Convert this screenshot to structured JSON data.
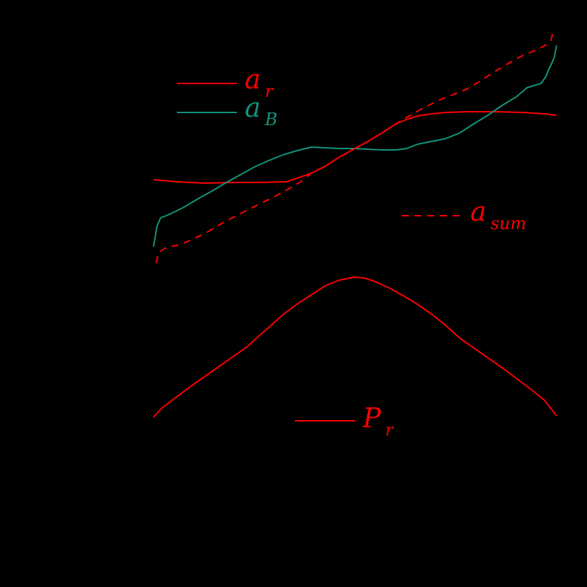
{
  "chart_data": {
    "type": "line",
    "title": "",
    "xlabel": "",
    "ylabel": "",
    "grid": false,
    "background": "#000000",
    "pixel_space_note": "Axes/ticks not visible (black on black); values are in screen pixel coordinates (x: 217-787, y: 0 top - 830 bottom).",
    "series": [
      {
        "name": "a_r",
        "label_main": "a",
        "label_sub": "r",
        "color": "#ff0000",
        "style": "solid",
        "points": [
          [
            217,
            254
          ],
          [
            250,
            257
          ],
          [
            290,
            259
          ],
          [
            330,
            258
          ],
          [
            370,
            258
          ],
          [
            405,
            257
          ],
          [
            420,
            252
          ],
          [
            440,
            245
          ],
          [
            460,
            235
          ],
          [
            480,
            222
          ],
          [
            500,
            211
          ],
          [
            520,
            200
          ],
          [
            540,
            188
          ],
          [
            560,
            175
          ],
          [
            575,
            169
          ],
          [
            590,
            164
          ],
          [
            610,
            161
          ],
          [
            630,
            159
          ],
          [
            660,
            158
          ],
          [
            700,
            158
          ],
          [
            740,
            159
          ],
          [
            770,
            161
          ],
          [
            787,
            163
          ]
        ]
      },
      {
        "name": "a_B",
        "label_main": "a",
        "label_sub": "B",
        "color": "#12947c",
        "style": "solid",
        "points": [
          [
            217,
            349
          ],
          [
            222,
            320
          ],
          [
            227,
            308
          ],
          [
            235,
            305
          ],
          [
            250,
            298
          ],
          [
            260,
            293
          ],
          [
            280,
            281
          ],
          [
            300,
            270
          ],
          [
            320,
            258
          ],
          [
            340,
            247
          ],
          [
            360,
            236
          ],
          [
            380,
            227
          ],
          [
            400,
            219
          ],
          [
            420,
            213
          ],
          [
            440,
            208
          ],
          [
            460,
            209
          ],
          [
            480,
            210
          ],
          [
            500,
            210
          ],
          [
            520,
            211
          ],
          [
            540,
            212
          ],
          [
            560,
            212
          ],
          [
            575,
            210
          ],
          [
            590,
            204
          ],
          [
            610,
            200
          ],
          [
            630,
            196
          ],
          [
            650,
            188
          ],
          [
            670,
            175
          ],
          [
            690,
            163
          ],
          [
            710,
            149
          ],
          [
            730,
            137
          ],
          [
            745,
            124
          ],
          [
            755,
            121
          ],
          [
            765,
            118
          ],
          [
            772,
            108
          ],
          [
            775,
            100
          ],
          [
            780,
            90
          ],
          [
            784,
            80
          ],
          [
            787,
            64
          ]
        ]
      },
      {
        "name": "a_sum",
        "label_main": "a",
        "label_sub": "sum",
        "color": "#ff0000",
        "style": "dashed",
        "points": [
          [
            221,
            372
          ],
          [
            224,
            357
          ],
          [
            235,
            350
          ],
          [
            255,
            346
          ],
          [
            275,
            337
          ],
          [
            290,
            330
          ],
          [
            310,
            318
          ],
          [
            330,
            307
          ],
          [
            350,
            297
          ],
          [
            370,
            287
          ],
          [
            390,
            277
          ],
          [
            410,
            266
          ],
          [
            425,
            257
          ],
          [
            440,
            245
          ],
          [
            460,
            235
          ],
          [
            480,
            222
          ],
          [
            500,
            211
          ],
          [
            520,
            200
          ],
          [
            540,
            188
          ],
          [
            560,
            175
          ],
          [
            580,
            163
          ],
          [
            600,
            152
          ],
          [
            620,
            142
          ],
          [
            640,
            134
          ],
          [
            660,
            126
          ],
          [
            680,
            114
          ],
          [
            700,
            101
          ],
          [
            720,
            89
          ],
          [
            740,
            78
          ],
          [
            760,
            70
          ],
          [
            775,
            62
          ],
          [
            779,
            57
          ],
          [
            782,
            45
          ]
        ]
      },
      {
        "name": "P_r",
        "label_main": "P",
        "label_sub": "r",
        "color": "#ff0000",
        "style": "solid",
        "points": [
          [
            217,
            590
          ],
          [
            230,
            576
          ],
          [
            250,
            561
          ],
          [
            270,
            546
          ],
          [
            290,
            532
          ],
          [
            310,
            518
          ],
          [
            330,
            504
          ],
          [
            350,
            490
          ],
          [
            365,
            476
          ],
          [
            380,
            463
          ],
          [
            400,
            445
          ],
          [
            420,
            430
          ],
          [
            440,
            417
          ],
          [
            460,
            404
          ],
          [
            480,
            396
          ],
          [
            500,
            392
          ],
          [
            515,
            393
          ],
          [
            530,
            398
          ],
          [
            550,
            407
          ],
          [
            570,
            418
          ],
          [
            590,
            430
          ],
          [
            610,
            444
          ],
          [
            630,
            460
          ],
          [
            650,
            478
          ],
          [
            670,
            492
          ],
          [
            690,
            506
          ],
          [
            710,
            520
          ],
          [
            730,
            535
          ],
          [
            750,
            550
          ],
          [
            770,
            566
          ],
          [
            787,
            588
          ]
        ]
      }
    ],
    "legends": [
      {
        "series": "a_r",
        "line_x1": 250,
        "line_x2": 335,
        "line_y": 118,
        "text_x": 346,
        "text_y": 125
      },
      {
        "series": "a_B",
        "line_x1": 250,
        "line_x2": 335,
        "line_y": 159,
        "text_x": 346,
        "text_y": 165
      },
      {
        "series": "a_sum",
        "line_x1": 568,
        "line_x2": 654,
        "line_y": 305,
        "text_x": 665,
        "text_y": 312
      },
      {
        "series": "P_r",
        "line_x1": 417,
        "line_x2": 502,
        "line_y": 595,
        "text_x": 513,
        "text_y": 604
      }
    ]
  }
}
